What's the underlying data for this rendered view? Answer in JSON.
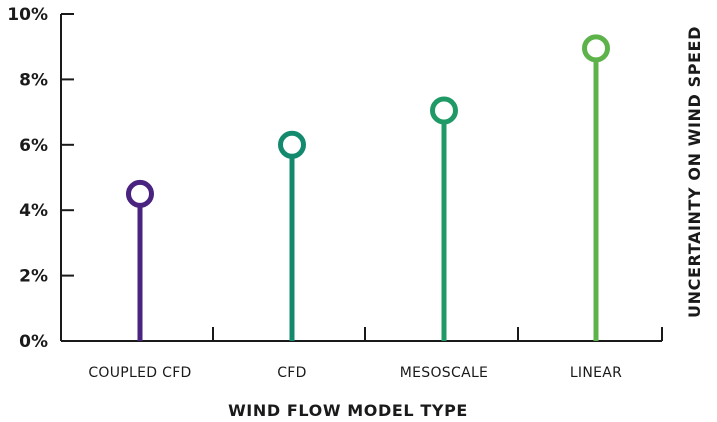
{
  "chart_data": {
    "type": "lollipop",
    "title": "",
    "xlabel": "WIND FLOW MODEL TYPE",
    "ylabel": "UNCERTAINTY ON WIND SPEED",
    "ylabel_position": "right",
    "categories": [
      "COUPLED CFD",
      "CFD",
      "MESOSCALE",
      "LINEAR"
    ],
    "values": [
      4.5,
      6.0,
      7.05,
      8.95
    ],
    "unit": "%",
    "ylim": [
      0,
      10
    ],
    "yticks": [
      0,
      2,
      4,
      6,
      8,
      10
    ],
    "ytick_labels": [
      "0%",
      "2%",
      "4%",
      "6%",
      "8%",
      "10%"
    ],
    "colors": [
      "#4a2380",
      "#138a6e",
      "#1f9a66",
      "#5db24a"
    ],
    "grid": false,
    "legend": "none"
  }
}
